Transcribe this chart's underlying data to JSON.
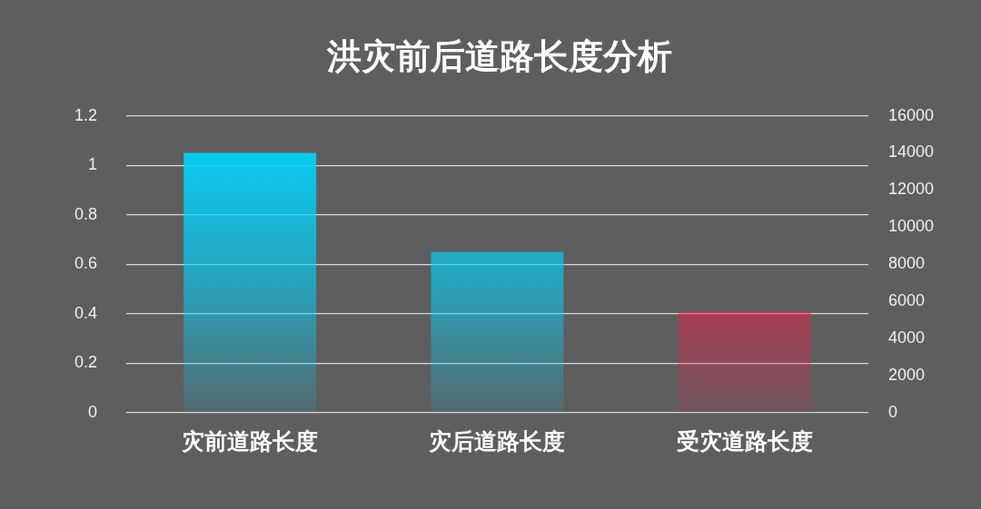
{
  "chart_data": {
    "type": "bar",
    "title": "洪灾前后道路长度分析",
    "categories": [
      "灾前道路长度",
      "灾后道路长度",
      "受灾道路长度"
    ],
    "values": [
      1.05,
      0.65,
      0.41
    ],
    "colors": [
      "#00d4ff",
      "#00d4ff",
      "#f5174a"
    ],
    "ylim": [
      0,
      1.2
    ],
    "yticks": [
      0,
      0.2,
      0.4,
      0.6,
      0.8,
      1,
      1.2
    ],
    "y2lim": [
      0,
      16000
    ],
    "y2ticks": [
      0,
      2000,
      4000,
      6000,
      8000,
      10000,
      12000,
      14000,
      16000
    ],
    "grid": "y",
    "legend": false
  }
}
